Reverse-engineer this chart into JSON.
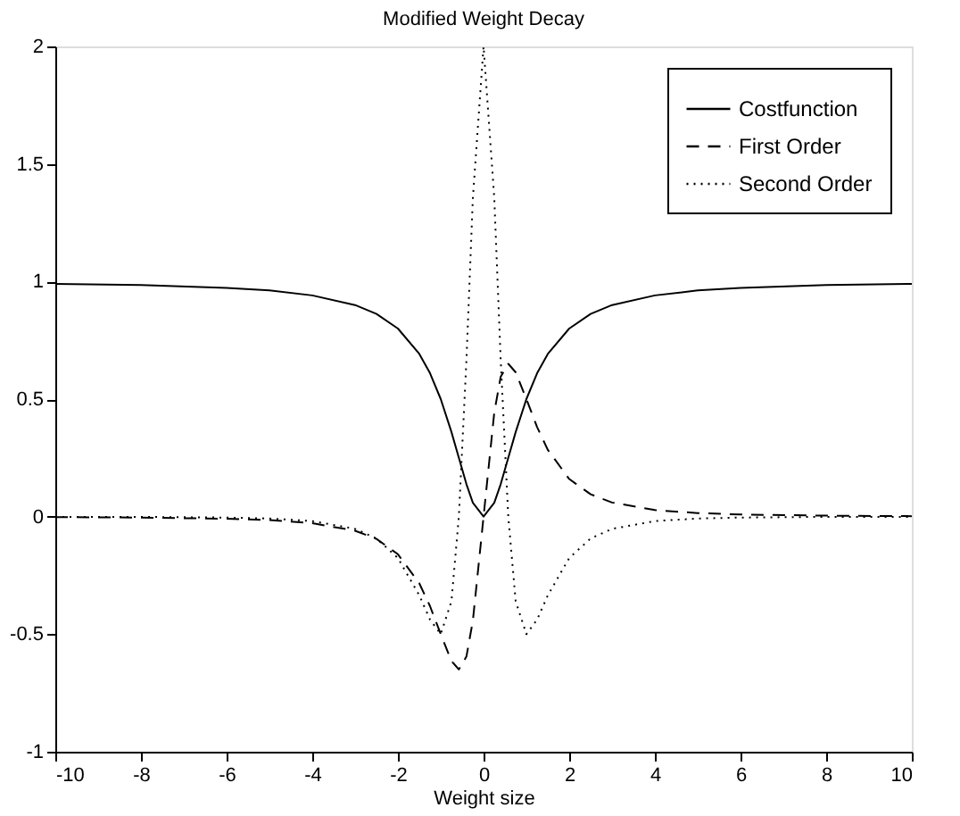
{
  "chart_data": {
    "type": "line",
    "title": "Modified Weight Decay",
    "xlabel": "Weight size",
    "xlim": [
      -10,
      10
    ],
    "xticks": [
      -10,
      -8,
      -6,
      -4,
      -2,
      0,
      2,
      4,
      6,
      8,
      10
    ],
    "ylim": [
      -1,
      2
    ],
    "yticks": [
      -1,
      -0.5,
      0,
      0.5,
      1,
      1.5,
      2
    ],
    "grid": false,
    "legend": "top right",
    "x": [
      -10,
      -8,
      -6,
      -5,
      -4,
      -3,
      -2.5,
      -2,
      -1.5,
      -1.25,
      -1,
      -0.75,
      -0.577,
      -0.4,
      -0.25,
      0,
      0.25,
      0.4,
      0.577,
      0.75,
      1,
      1.25,
      1.5,
      2,
      2.5,
      3,
      4,
      5,
      6,
      8,
      10
    ],
    "series": [
      {
        "name": "Costfunction",
        "color": "#000000",
        "line_style": "solid",
        "values": [
          0.99,
          0.985,
          0.973,
          0.962,
          0.941,
          0.9,
          0.862,
          0.8,
          0.692,
          0.61,
          0.5,
          0.36,
          0.25,
          0.138,
          0.059,
          0,
          0.059,
          0.138,
          0.25,
          0.36,
          0.5,
          0.61,
          0.692,
          0.8,
          0.862,
          0.9,
          0.941,
          0.962,
          0.973,
          0.985,
          0.99
        ]
      },
      {
        "name": "First Order",
        "color": "#000000",
        "line_style": "dashed",
        "values": [
          -0.002,
          -0.004,
          -0.009,
          -0.015,
          -0.028,
          -0.06,
          -0.095,
          -0.16,
          -0.284,
          -0.381,
          -0.5,
          -0.614,
          -0.65,
          -0.595,
          -0.443,
          0,
          0.443,
          0.595,
          0.65,
          0.614,
          0.5,
          0.381,
          0.284,
          0.16,
          0.095,
          0.06,
          0.028,
          0.015,
          0.009,
          0.004,
          0.002
        ]
      },
      {
        "name": "Second Order",
        "color": "#000000",
        "line_style": "dotted",
        "values": [
          -0.001,
          -0.001,
          -0.004,
          -0.008,
          -0.019,
          -0.052,
          -0.093,
          -0.176,
          -0.335,
          -0.438,
          -0.5,
          -0.36,
          0,
          0.666,
          1.355,
          2,
          1.355,
          0.666,
          0,
          -0.36,
          -0.5,
          -0.438,
          -0.335,
          -0.176,
          -0.093,
          -0.052,
          -0.019,
          -0.008,
          -0.004,
          -0.001,
          -0.001
        ]
      }
    ]
  }
}
